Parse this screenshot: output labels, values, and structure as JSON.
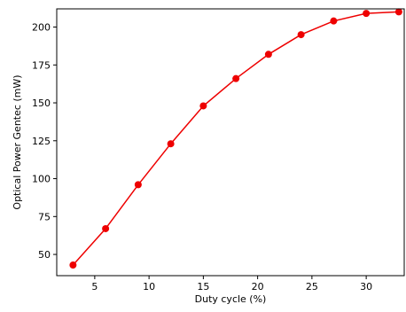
{
  "chart_data": {
    "type": "line",
    "title": "",
    "xlabel": "Duty cycle (%)",
    "ylabel": "Optical Power Gentec (mW)",
    "xlim": [
      1.5,
      33.5
    ],
    "ylim": [
      36,
      212
    ],
    "x_ticks": [
      5,
      10,
      15,
      20,
      25,
      30
    ],
    "y_ticks": [
      50,
      75,
      100,
      125,
      150,
      175,
      200
    ],
    "x_tick_labels": [
      "5",
      "10",
      "15",
      "20",
      "25",
      "30"
    ],
    "y_tick_labels": [
      "50",
      "75",
      "100",
      "125",
      "150",
      "175",
      "200"
    ],
    "grid": false,
    "legend": "none",
    "series": [
      {
        "color": "#ee0000",
        "marker": "circle",
        "x": [
          3,
          6,
          9,
          12,
          15,
          18,
          21,
          24,
          27,
          30,
          33
        ],
        "y": [
          43,
          67,
          96,
          123,
          148,
          166,
          182,
          195,
          204,
          209,
          210
        ]
      }
    ]
  }
}
